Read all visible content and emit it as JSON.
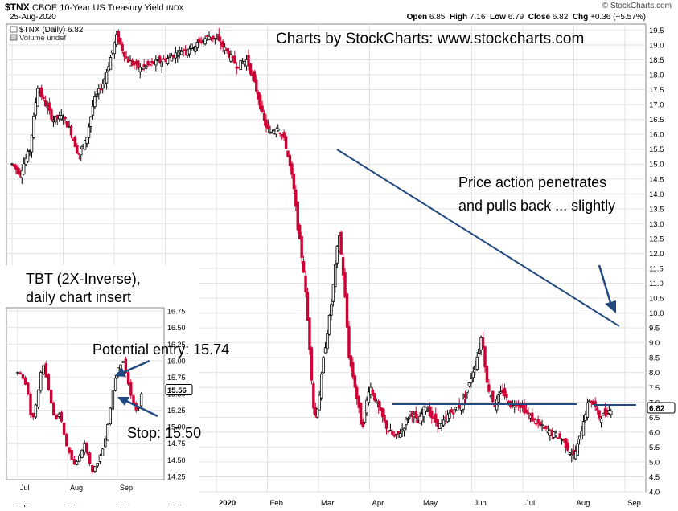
{
  "header": {
    "symbol": "$TNX",
    "name": "CBOE 10-Year US Treasury Yield",
    "exchange": "INDX",
    "date": "25-Aug-2020",
    "watermark": "© StockCharts.com",
    "ohlc": {
      "open_label": "Open",
      "open": "6.85",
      "high_label": "High",
      "high": "7.16",
      "low_label": "Low",
      "low": "6.79",
      "close_label": "Close",
      "close": "6.82",
      "chg_label": "Chg",
      "chg": "+0.36 (+5.57%)"
    }
  },
  "legend": {
    "series_label": "$TNX (Daily) 6.82",
    "volume_label": "Volume undef"
  },
  "annotations": {
    "credit": "Charts by StockCharts:  www.stockcharts.com",
    "price_action_line1": "Price action penetrates",
    "price_action_line2": "and pulls back ... slightly",
    "insert_line1": "TBT (2X-Inverse),",
    "insert_line2": "daily chart insert",
    "entry": "Potential entry:  15.74",
    "stop": "Stop:  15.50"
  },
  "colors": {
    "up": "#000000",
    "down": "#cc0033",
    "trendline": "#234a80",
    "grid": "#e2e2e2"
  },
  "chart_data": [
    {
      "type": "candlestick",
      "title": "$TNX CBOE 10-Year US Treasury Yield INDX",
      "y_axis": "right",
      "ylim": [
        4.0,
        19.7
      ],
      "y_ticks": [
        "4.0",
        "4.5",
        "5.0",
        "5.5",
        "6.0",
        "6.5",
        "7.0",
        "7.5",
        "8.0",
        "8.5",
        "9.0",
        "9.5",
        "10.0",
        "10.5",
        "11.0",
        "11.5",
        "12.0",
        "12.5",
        "13.0",
        "13.5",
        "14.0",
        "14.5",
        "15.0",
        "15.5",
        "16.0",
        "16.5",
        "17.0",
        "17.5",
        "18.0",
        "18.5",
        "19.0",
        "19.5"
      ],
      "x_ticks": [
        {
          "label": "Sep",
          "month": 0
        },
        {
          "label": "Oct",
          "month": 1
        },
        {
          "label": "Nov",
          "month": 2
        },
        {
          "label": "Dec",
          "month": 3
        },
        {
          "label": "2020",
          "month": 4,
          "bold": true
        },
        {
          "label": "Feb",
          "month": 5
        },
        {
          "label": "Mar",
          "month": 6
        },
        {
          "label": "Apr",
          "month": 7
        },
        {
          "label": "May",
          "month": 8
        },
        {
          "label": "Jun",
          "month": 9
        },
        {
          "label": "Jul",
          "month": 10
        },
        {
          "label": "Aug",
          "month": 11
        },
        {
          "label": "Sep",
          "month": 12
        }
      ],
      "last_value": "6.82",
      "path": [
        [
          -0.05,
          15.0
        ],
        [
          0.0,
          15.0
        ],
        [
          0.15,
          14.7
        ],
        [
          0.35,
          15.5
        ],
        [
          0.5,
          17.6
        ],
        [
          0.6,
          17.2
        ],
        [
          0.8,
          16.5
        ],
        [
          1.0,
          16.6
        ],
        [
          1.15,
          16.1
        ],
        [
          1.3,
          15.3
        ],
        [
          1.45,
          15.8
        ],
        [
          1.6,
          17.1
        ],
        [
          1.8,
          17.8
        ],
        [
          2.05,
          19.3
        ],
        [
          2.25,
          18.5
        ],
        [
          2.5,
          18.2
        ],
        [
          2.8,
          18.4
        ],
        [
          3.0,
          18.5
        ],
        [
          3.3,
          18.8
        ],
        [
          3.6,
          19.0
        ],
        [
          3.85,
          19.3
        ],
        [
          4.0,
          19.2
        ],
        [
          4.2,
          18.8
        ],
        [
          4.4,
          18.3
        ],
        [
          4.6,
          18.5
        ],
        [
          4.8,
          17.4
        ],
        [
          4.92,
          16.5
        ],
        [
          5.05,
          16.0
        ],
        [
          5.2,
          16.3
        ],
        [
          5.35,
          15.7
        ],
        [
          5.5,
          14.4
        ],
        [
          5.6,
          12.8
        ],
        [
          5.72,
          11.3
        ],
        [
          5.82,
          9.0
        ],
        [
          5.92,
          6.4
        ],
        [
          6.0,
          7.0
        ],
        [
          6.1,
          8.5
        ],
        [
          6.25,
          10.3
        ],
        [
          6.4,
          12.7
        ],
        [
          6.5,
          11.0
        ],
        [
          6.6,
          8.5
        ],
        [
          6.72,
          7.5
        ],
        [
          6.85,
          6.1
        ],
        [
          7.0,
          7.6
        ],
        [
          7.15,
          6.9
        ],
        [
          7.35,
          6.1
        ],
        [
          7.5,
          5.8
        ],
        [
          7.65,
          6.1
        ],
        [
          7.8,
          6.7
        ],
        [
          7.95,
          6.3
        ],
        [
          8.1,
          6.9
        ],
        [
          8.25,
          6.4
        ],
        [
          8.4,
          6.2
        ],
        [
          8.55,
          6.6
        ],
        [
          8.7,
          6.8
        ],
        [
          8.8,
          6.9
        ],
        [
          8.95,
          7.6
        ],
        [
          9.1,
          8.5
        ],
        [
          9.2,
          9.3
        ],
        [
          9.3,
          7.6
        ],
        [
          9.45,
          6.9
        ],
        [
          9.6,
          7.4
        ],
        [
          9.75,
          6.9
        ],
        [
          9.9,
          7.0
        ],
        [
          10.05,
          6.7
        ],
        [
          10.2,
          6.4
        ],
        [
          10.35,
          6.2
        ],
        [
          10.5,
          6.0
        ],
        [
          10.65,
          5.9
        ],
        [
          10.8,
          5.7
        ],
        [
          10.9,
          5.4
        ],
        [
          11.0,
          5.2
        ],
        [
          11.1,
          5.7
        ],
        [
          11.2,
          6.5
        ],
        [
          11.3,
          7.1
        ],
        [
          11.4,
          6.9
        ],
        [
          11.5,
          6.5
        ],
        [
          11.6,
          6.6
        ],
        [
          11.75,
          6.82
        ]
      ]
    },
    {
      "type": "candlestick",
      "title": "TBT (2X-Inverse), daily chart insert",
      "y_axis": "right",
      "ylim": [
        14.2,
        16.8
      ],
      "y_ticks": [
        "14.25",
        "14.50",
        "14.75",
        "15.00",
        "15.25",
        "15.50",
        "15.75",
        "16.00",
        "16.25",
        "16.50",
        "16.75"
      ],
      "x_ticks": [
        {
          "label": "Jul",
          "month": 0
        },
        {
          "label": "Aug",
          "month": 1
        },
        {
          "label": "Sep",
          "month": 2
        }
      ],
      "last_value": "15.56",
      "path": [
        [
          -0.02,
          15.85
        ],
        [
          0.1,
          15.75
        ],
        [
          0.2,
          15.55
        ],
        [
          0.28,
          15.05
        ],
        [
          0.38,
          15.4
        ],
        [
          0.5,
          16.0
        ],
        [
          0.62,
          15.55
        ],
        [
          0.75,
          15.1
        ],
        [
          0.85,
          15.2
        ],
        [
          0.95,
          14.8
        ],
        [
          1.05,
          14.55
        ],
        [
          1.15,
          14.4
        ],
        [
          1.25,
          14.6
        ],
        [
          1.35,
          14.75
        ],
        [
          1.45,
          14.45
        ],
        [
          1.5,
          14.3
        ],
        [
          1.62,
          14.5
        ],
        [
          1.72,
          14.7
        ],
        [
          1.82,
          15.1
        ],
        [
          1.9,
          15.5
        ],
        [
          2.0,
          15.9
        ],
        [
          2.12,
          16.0
        ],
        [
          2.2,
          15.7
        ],
        [
          2.3,
          15.4
        ],
        [
          2.4,
          15.2
        ],
        [
          2.5,
          15.56
        ]
      ]
    }
  ]
}
